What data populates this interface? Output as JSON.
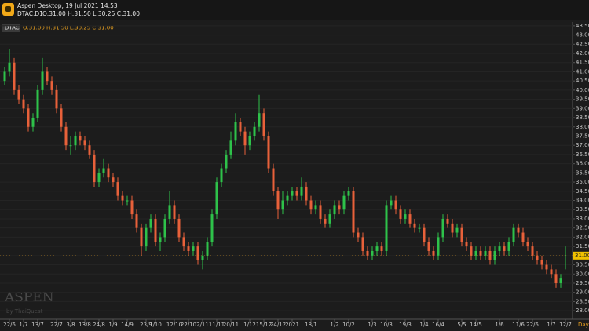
{
  "header": {
    "app_title": "Aspen Desktop, 19 Jul 2021 14:53",
    "symbol": "DTAC,D1",
    "ohlc": "O:31.00 H:31.50 L:30.25 C:31.00"
  },
  "watermark": {
    "brand": "ASPEN",
    "by": "by ThaiQuest"
  },
  "chart_data": {
    "type": "candlestick",
    "symbol": "DTAC",
    "ohlc_text": "O:31.00 H:31.50 L:30.25 C:31.00",
    "timeframe_label": "Day",
    "up_color": "#2ec24a",
    "down_color": "#e8613a",
    "grid": true,
    "current_price": {
      "value": 31,
      "label": "31.00"
    },
    "ylim": [
      27.75,
      43.75
    ],
    "yticks": [
      {
        "value": 28,
        "label": "28.00"
      },
      {
        "value": 28.5,
        "label": "28.50"
      },
      {
        "value": 29,
        "label": "29.00"
      },
      {
        "value": 29.5,
        "label": "29.50"
      },
      {
        "value": 30,
        "label": "30.00"
      },
      {
        "value": 30.5,
        "label": "30.50"
      },
      {
        "value": 31,
        "label": "31.00"
      },
      {
        "value": 31.5,
        "label": "31.50"
      },
      {
        "value": 32,
        "label": "32.00"
      },
      {
        "value": 32.5,
        "label": "32.50"
      },
      {
        "value": 33,
        "label": "33.00"
      },
      {
        "value": 33.5,
        "label": "33.50"
      },
      {
        "value": 34,
        "label": "34.00"
      },
      {
        "value": 34.5,
        "label": "34.50"
      },
      {
        "value": 35,
        "label": "35.00"
      },
      {
        "value": 35.5,
        "label": "35.50"
      },
      {
        "value": 36,
        "label": "36.00"
      },
      {
        "value": 36.5,
        "label": "36.50"
      },
      {
        "value": 37,
        "label": "37.00"
      },
      {
        "value": 37.5,
        "label": "37.50"
      },
      {
        "value": 38,
        "label": "38.00"
      },
      {
        "value": 38.5,
        "label": "38.50"
      },
      {
        "value": 39,
        "label": "39.00"
      },
      {
        "value": 39.5,
        "label": "39.50"
      },
      {
        "value": 40,
        "label": "40.00"
      },
      {
        "value": 40.5,
        "label": "40.50"
      },
      {
        "value": 41,
        "label": "41.00"
      },
      {
        "value": 41.5,
        "label": "41.50"
      },
      {
        "value": 42,
        "label": "42.00"
      },
      {
        "value": 42.5,
        "label": "42.50"
      },
      {
        "value": 43,
        "label": "43.00"
      },
      {
        "value": 43.5,
        "label": "43.50"
      }
    ],
    "categories": [
      null,
      "22/6",
      null,
      null,
      "1/7",
      null,
      null,
      "13/7",
      null,
      null,
      null,
      "22/7",
      null,
      null,
      "3/8",
      null,
      null,
      "13/8",
      null,
      null,
      "24/8",
      null,
      null,
      "1/9",
      null,
      null,
      "14/9",
      null,
      null,
      null,
      "23/9",
      null,
      "1/10",
      null,
      null,
      null,
      "12/10",
      null,
      null,
      "22/10",
      null,
      null,
      "2/11",
      null,
      null,
      "11/11",
      null,
      null,
      "20/11",
      null,
      null,
      null,
      "1/12",
      null,
      null,
      "15/12",
      null,
      null,
      "24/12",
      null,
      null,
      "2021",
      null,
      null,
      null,
      "18/1",
      null,
      null,
      null,
      null,
      "1/2",
      null,
      null,
      "10/2",
      null,
      null,
      null,
      null,
      "1/3",
      null,
      null,
      "10/3",
      null,
      null,
      null,
      "19/3",
      null,
      null,
      null,
      "1/4",
      null,
      null,
      "16/4",
      null,
      null,
      null,
      null,
      "5/5",
      null,
      null,
      "14/5",
      null,
      null,
      null,
      null,
      "1/6",
      null,
      null,
      null,
      "11/6",
      null,
      null,
      "22/6",
      null,
      null,
      null,
      "1/7",
      null,
      null,
      "12/7"
    ],
    "open": [
      40.5,
      41.0,
      41.5,
      40.0,
      39.5,
      39.0,
      38.0,
      38.5,
      40.0,
      41.0,
      40.5,
      40.0,
      39.0,
      38.0,
      37.0,
      37.0,
      37.5,
      37.25,
      37.0,
      36.5,
      35.0,
      35.5,
      35.75,
      35.25,
      35.0,
      34.25,
      34.0,
      34.0,
      33.25,
      32.5,
      31.5,
      32.5,
      33.0,
      31.75,
      32.0,
      33.0,
      33.75,
      33.0,
      32.0,
      31.5,
      31.25,
      31.5,
      30.75,
      31.0,
      31.75,
      33.25,
      35.0,
      35.75,
      36.5,
      37.25,
      38.25,
      37.75,
      37.0,
      37.5,
      38.0,
      38.75,
      37.5,
      35.75,
      34.5,
      33.5,
      34.0,
      34.25,
      34.5,
      34.25,
      34.75,
      34.0,
      33.5,
      33.75,
      33.0,
      32.75,
      33.25,
      33.75,
      33.5,
      34.25,
      34.5,
      32.25,
      32.0,
      31.25,
      31.0,
      31.25,
      31.5,
      31.25,
      33.75,
      34.0,
      33.5,
      33.0,
      33.25,
      32.75,
      32.5,
      32.5,
      31.75,
      31.25,
      31.0,
      32.0,
      33.0,
      32.75,
      32.25,
      32.5,
      31.75,
      31.5,
      31.0,
      31.25,
      31.0,
      31.25,
      30.75,
      31.25,
      31.5,
      31.25,
      31.75,
      32.5,
      32.25,
      31.75,
      31.5,
      31.0,
      30.75,
      30.5,
      30.25,
      30.0,
      29.5,
      31.0
    ],
    "high": [
      41.25,
      42.25,
      41.75,
      40.25,
      39.75,
      39.25,
      38.75,
      40.25,
      41.75,
      41.25,
      40.75,
      40.25,
      39.25,
      38.25,
      37.5,
      37.75,
      37.75,
      37.5,
      37.25,
      36.75,
      35.75,
      36.25,
      36.0,
      35.5,
      35.25,
      34.5,
      34.25,
      34.25,
      33.5,
      32.75,
      32.75,
      33.25,
      33.25,
      32.25,
      33.25,
      34.5,
      34.0,
      33.25,
      32.25,
      31.75,
      31.75,
      31.75,
      31.25,
      32.0,
      33.5,
      35.25,
      36.0,
      36.75,
      37.75,
      38.75,
      38.5,
      38.0,
      37.75,
      38.25,
      39.75,
      39.0,
      37.75,
      36.0,
      34.75,
      34.5,
      34.5,
      34.75,
      34.75,
      35.25,
      35.0,
      34.25,
      34.0,
      34.0,
      33.25,
      33.5,
      34.0,
      34.0,
      34.5,
      34.75,
      34.75,
      32.5,
      32.25,
      31.5,
      31.5,
      31.75,
      31.75,
      34.0,
      34.25,
      34.25,
      33.75,
      33.5,
      33.5,
      33.0,
      32.75,
      32.75,
      32.0,
      31.5,
      32.25,
      33.25,
      33.25,
      33.0,
      32.75,
      32.75,
      32.0,
      31.75,
      31.5,
      31.5,
      31.5,
      31.5,
      31.5,
      31.75,
      31.75,
      32.0,
      32.75,
      32.75,
      32.5,
      32.0,
      31.75,
      31.25,
      31.0,
      30.75,
      30.5,
      30.25,
      30.0,
      31.5
    ],
    "low": [
      40.25,
      40.75,
      39.75,
      39.25,
      38.75,
      37.75,
      37.75,
      38.25,
      39.75,
      40.25,
      39.75,
      38.75,
      37.75,
      36.75,
      36.5,
      36.75,
      37.0,
      36.75,
      36.25,
      34.75,
      34.75,
      35.25,
      35.0,
      34.75,
      34.0,
      33.75,
      33.75,
      33.0,
      32.25,
      31.0,
      31.25,
      32.25,
      31.5,
      31.25,
      31.75,
      32.75,
      32.75,
      31.75,
      31.25,
      31.0,
      31.0,
      30.5,
      30.25,
      30.75,
      31.5,
      33.0,
      34.75,
      35.5,
      36.25,
      37.0,
      37.5,
      36.5,
      36.75,
      37.25,
      37.75,
      37.25,
      35.5,
      34.25,
      33.0,
      33.25,
      33.75,
      34.0,
      34.0,
      34.0,
      33.75,
      33.25,
      33.25,
      32.75,
      32.5,
      32.5,
      33.0,
      33.25,
      33.25,
      34.0,
      32.0,
      31.75,
      31.0,
      30.75,
      30.75,
      31.0,
      31.0,
      31.0,
      33.5,
      33.25,
      32.75,
      32.75,
      32.5,
      32.25,
      32.25,
      31.5,
      31.0,
      30.75,
      30.75,
      31.75,
      32.5,
      32.0,
      32.0,
      31.5,
      31.25,
      30.75,
      30.75,
      30.75,
      30.75,
      30.5,
      30.5,
      31.0,
      31.0,
      31.0,
      31.5,
      32.0,
      31.5,
      31.25,
      30.75,
      30.5,
      30.25,
      30.0,
      29.75,
      29.25,
      29.25,
      30.25
    ],
    "close": [
      41.0,
      41.5,
      40.0,
      39.5,
      39.0,
      38.0,
      38.5,
      40.0,
      41.0,
      40.5,
      40.0,
      39.0,
      38.0,
      37.0,
      37.0,
      37.5,
      37.25,
      37.0,
      36.5,
      35.0,
      35.5,
      35.75,
      35.25,
      35.0,
      34.25,
      34.0,
      34.0,
      33.25,
      32.5,
      31.5,
      32.5,
      33.0,
      31.75,
      32.0,
      33.0,
      33.75,
      33.0,
      32.0,
      31.5,
      31.25,
      31.5,
      30.75,
      31.0,
      31.75,
      33.25,
      35.0,
      35.75,
      36.5,
      37.25,
      38.25,
      37.75,
      37.0,
      37.5,
      38.0,
      38.75,
      37.5,
      35.75,
      34.5,
      33.5,
      34.0,
      34.25,
      34.5,
      34.25,
      34.75,
      34.0,
      33.5,
      33.75,
      33.0,
      32.75,
      33.25,
      33.75,
      33.5,
      34.25,
      34.5,
      32.25,
      32.0,
      31.25,
      31.0,
      31.25,
      31.5,
      31.25,
      33.75,
      34.0,
      33.5,
      33.0,
      33.25,
      32.75,
      32.5,
      32.5,
      31.75,
      31.25,
      31.0,
      32.0,
      33.0,
      32.75,
      32.25,
      32.5,
      31.75,
      31.5,
      31.0,
      31.25,
      31.0,
      31.25,
      30.75,
      31.25,
      31.5,
      31.25,
      31.75,
      32.5,
      32.25,
      31.75,
      31.5,
      31.0,
      30.75,
      30.5,
      30.25,
      30.0,
      29.5,
      29.75,
      31.0
    ]
  }
}
